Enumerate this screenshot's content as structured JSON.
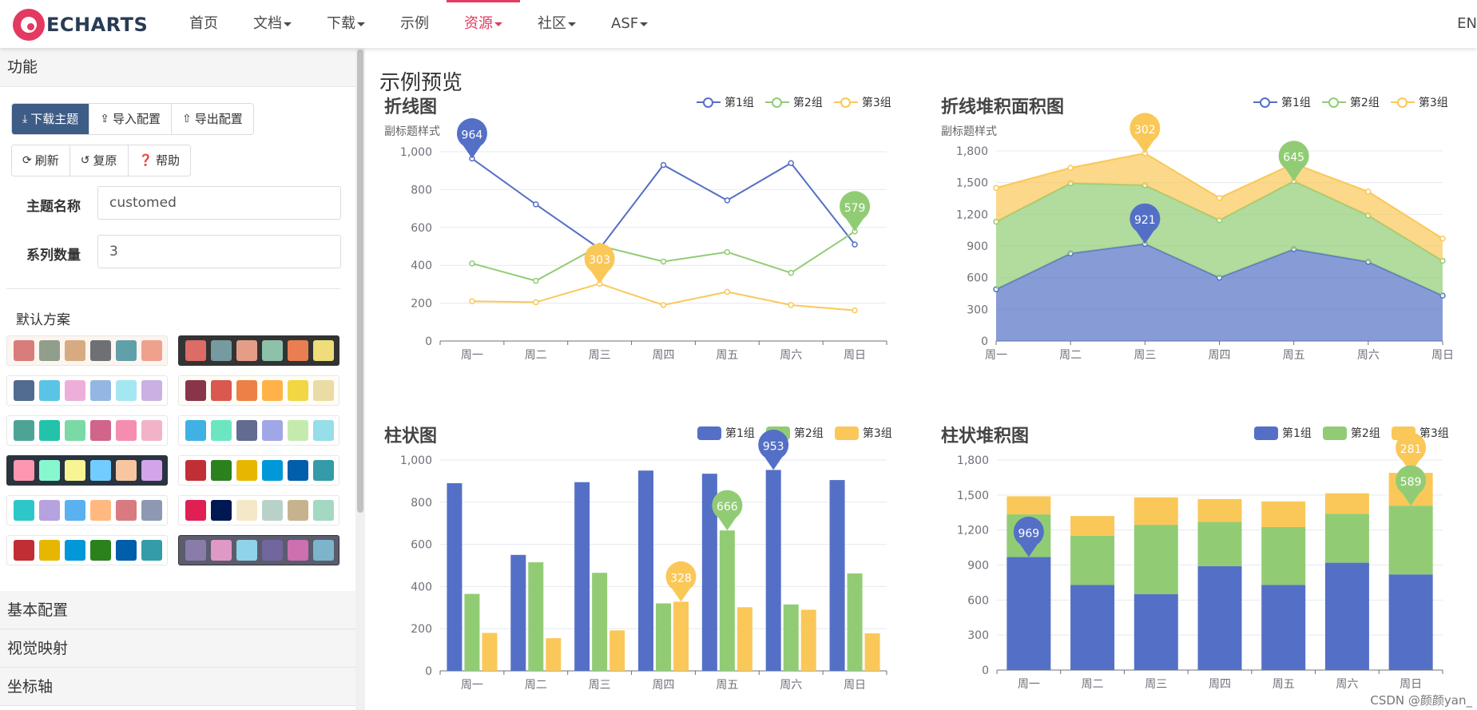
{
  "nav": {
    "logo_text": "ECHARTS",
    "items": [
      {
        "label": "首页",
        "dropdown": false,
        "active": false
      },
      {
        "label": "文档",
        "dropdown": true,
        "active": false
      },
      {
        "label": "下载",
        "dropdown": true,
        "active": false
      },
      {
        "label": "示例",
        "dropdown": false,
        "active": false
      },
      {
        "label": "资源",
        "dropdown": true,
        "active": true
      },
      {
        "label": "社区",
        "dropdown": true,
        "active": false
      },
      {
        "label": "ASF",
        "dropdown": true,
        "active": false
      }
    ],
    "lang": "EN",
    "accent_color": "#e43961"
  },
  "sidebar": {
    "section_title": "功能",
    "buttons_row1": [
      {
        "label": "下载主题",
        "icon": "download-icon"
      },
      {
        "label": "导入配置",
        "icon": "import-icon"
      },
      {
        "label": "导出配置",
        "icon": "export-icon"
      }
    ],
    "buttons_row2": [
      {
        "label": "刷新",
        "icon": "refresh-icon"
      },
      {
        "label": "复原",
        "icon": "undo-icon"
      },
      {
        "label": "帮助",
        "icon": "help-icon"
      }
    ],
    "theme_name_label": "主题名称",
    "theme_name_value": "customed",
    "series_count_label": "系列数量",
    "series_count_value": "3",
    "schemes_title": "默认方案",
    "schemes": [
      {
        "bg": "#fef8ef",
        "colors": [
          "#e01f54",
          "#001852",
          "#f5e8c8",
          "#b8d2c7",
          "#c6b38e",
          "#a4d8c2"
        ],
        "hidden": true
      },
      {
        "bg": "#fdf5f0",
        "colors": [
          "#d87c7c",
          "#919e8b",
          "#d7ab82",
          "#6e7074",
          "#61a0a8",
          "#efa18d"
        ]
      },
      {
        "bg": "#333333",
        "colors": [
          "#dd6b66",
          "#759aa0",
          "#e69d87",
          "#8dc1a9",
          "#ea7e53",
          "#eedd78"
        ]
      },
      {
        "bg": "#ffffff",
        "colors": [
          "#516b91",
          "#59c4e6",
          "#edafda",
          "#93b7e3",
          "#a5e7f0",
          "#cbb0e3"
        ]
      },
      {
        "bg": "#fffdf5",
        "colors": [
          "#893448",
          "#d95850",
          "#eb8146",
          "#ffb248",
          "#f2d643",
          "#ebdba4"
        ]
      },
      {
        "bg": "#ffffff",
        "colors": [
          "#4ea397",
          "#22c3aa",
          "#7bd9a5",
          "#d0648a",
          "#f58db2",
          "#f2b3c9"
        ]
      },
      {
        "bg": "#ffffff",
        "colors": [
          "#3fb1e3",
          "#6be6c1",
          "#626c91",
          "#a0a7e6",
          "#c4ebad",
          "#96dee8"
        ]
      },
      {
        "bg": "#293441",
        "colors": [
          "#fc97af",
          "#87f7cf",
          "#f7f494",
          "#72ccff",
          "#f7c5a0",
          "#d4a4eb"
        ]
      },
      {
        "bg": "#ffffff",
        "colors": [
          "#c12e34",
          "#2b821d",
          "#e6b600",
          "#0098d9",
          "#005eaa",
          "#339ca8"
        ]
      },
      {
        "bg": "#ffffff",
        "colors": [
          "#2ec7c9",
          "#b6a2de",
          "#5ab1ef",
          "#ffb980",
          "#d87a80",
          "#8d98b3"
        ]
      },
      {
        "bg": "#ffffff",
        "colors": [
          "#e01f54",
          "#001852",
          "#f5e8c8",
          "#b8d2c7",
          "#c6b38e",
          "#a4d8c2"
        ]
      },
      {
        "bg": "#ffffff",
        "colors": [
          "#c12e34",
          "#e6b600",
          "#0098d9",
          "#2b821d",
          "#005eaa",
          "#339ca8"
        ]
      },
      {
        "bg": "#5b5c6e",
        "colors": [
          "#8a7ca8",
          "#e098c7",
          "#8fd3e8",
          "#71669e",
          "#cc70af",
          "#7cb4cc"
        ]
      }
    ],
    "collapsed_panels": [
      "基本配置",
      "视觉映射",
      "坐标轴"
    ]
  },
  "main": {
    "title": "示例预览",
    "watermark": "CSDN @颜颜yan_",
    "series_colors": [
      "#5470c6",
      "#91cc75",
      "#fac858"
    ]
  },
  "chart_data": [
    {
      "type": "line",
      "title": "折线图",
      "subtitle": "副标题样式",
      "categories": [
        "周一",
        "周二",
        "周三",
        "周四",
        "周五",
        "周六",
        "周日"
      ],
      "series": [
        {
          "name": "第1组",
          "values": [
            964,
            722,
            488,
            930,
            743,
            940,
            510
          ]
        },
        {
          "name": "第2组",
          "values": [
            410,
            318,
            503,
            420,
            470,
            360,
            579
          ]
        },
        {
          "name": "第3组",
          "values": [
            210,
            205,
            303,
            190,
            260,
            190,
            162
          ]
        }
      ],
      "ylim": [
        0,
        1000
      ],
      "yticks": [
        "0",
        "200",
        "400",
        "600",
        "800",
        "1,000"
      ],
      "markers": [
        {
          "series": 0,
          "index": 0,
          "label": "964"
        },
        {
          "series": 2,
          "index": 2,
          "label": "303"
        },
        {
          "series": 1,
          "index": 6,
          "label": "579"
        }
      ]
    },
    {
      "type": "area",
      "stacked": true,
      "title": "折线堆积面积图",
      "subtitle": "副标题样式",
      "categories": [
        "周一",
        "周二",
        "周三",
        "周四",
        "周五",
        "周六",
        "周日"
      ],
      "series": [
        {
          "name": "第1组",
          "values": [
            490,
            830,
            921,
            600,
            870,
            750,
            430
          ]
        },
        {
          "name": "第2组",
          "values": [
            640,
            665,
            555,
            545,
            645,
            440,
            330
          ]
        },
        {
          "name": "第3组",
          "values": [
            320,
            145,
            302,
            210,
            165,
            225,
            210
          ]
        }
      ],
      "ylim": [
        0,
        1800
      ],
      "yticks": [
        "0",
        "300",
        "600",
        "900",
        "1,200",
        "1,500",
        "1,800"
      ],
      "markers": [
        {
          "series": 2,
          "index": 2,
          "label": "302"
        },
        {
          "series": 0,
          "index": 2,
          "label": "921"
        },
        {
          "series": 1,
          "index": 4,
          "label": "645"
        }
      ]
    },
    {
      "type": "bar",
      "title": "柱状图",
      "categories": [
        "周一",
        "周二",
        "周三",
        "周四",
        "周五",
        "周六",
        "周日"
      ],
      "series": [
        {
          "name": "第1组",
          "values": [
            890,
            550,
            895,
            950,
            935,
            953,
            905
          ]
        },
        {
          "name": "第2组",
          "values": [
            365,
            515,
            465,
            320,
            666,
            315,
            462
          ]
        },
        {
          "name": "第3组",
          "values": [
            180,
            155,
            192,
            328,
            302,
            290,
            178
          ]
        }
      ],
      "ylim": [
        0,
        1000
      ],
      "yticks": [
        "0",
        "200",
        "400",
        "600",
        "800",
        "1,000"
      ],
      "markers": [
        {
          "series": 0,
          "index": 5,
          "label": "953"
        },
        {
          "series": 1,
          "index": 4,
          "label": "666"
        },
        {
          "series": 2,
          "index": 3,
          "label": "328"
        }
      ]
    },
    {
      "type": "bar",
      "stacked": true,
      "title": "柱状堆积图",
      "categories": [
        "周一",
        "周二",
        "周三",
        "周四",
        "周五",
        "周六",
        "周日"
      ],
      "series": [
        {
          "name": "第1组",
          "values": [
            969,
            730,
            650,
            890,
            730,
            920,
            820
          ]
        },
        {
          "name": "第2组",
          "values": [
            365,
            420,
            595,
            380,
            495,
            420,
            589
          ]
        },
        {
          "name": "第3组",
          "values": [
            155,
            170,
            235,
            195,
            220,
            175,
            281
          ]
        }
      ],
      "ylim": [
        0,
        1800
      ],
      "yticks": [
        "0",
        "300",
        "600",
        "900",
        "1,200",
        "1,500",
        "1,800"
      ],
      "markers": [
        {
          "series": 0,
          "index": 0,
          "label": "969"
        },
        {
          "series": 2,
          "index": 6,
          "label": "281"
        },
        {
          "series": 1,
          "index": 6,
          "label": "589"
        }
      ]
    }
  ]
}
